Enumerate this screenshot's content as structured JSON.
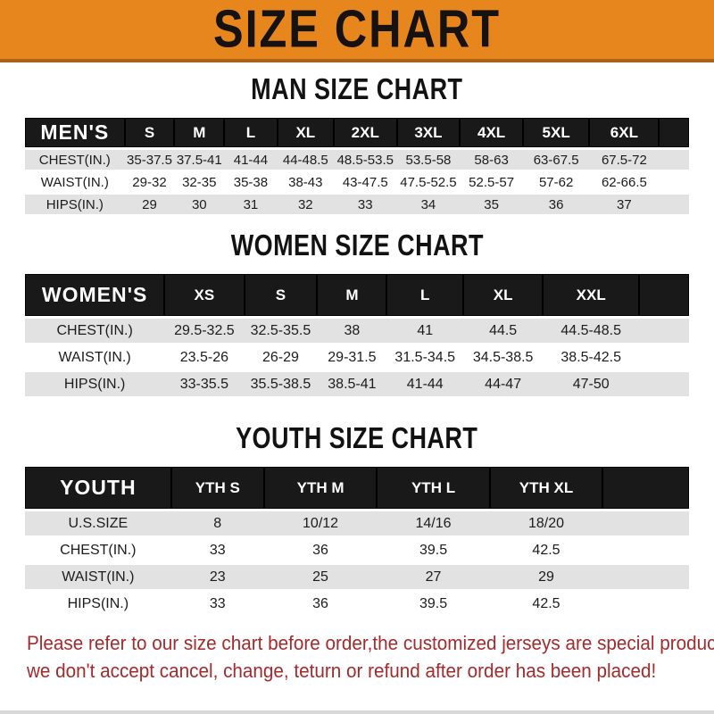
{
  "banner": {
    "title": "SIZE CHART"
  },
  "colors": {
    "banner_orange": "#E8861E",
    "banner_border": "#A96318",
    "header_band_black": "#191919",
    "row_gray": "#E2E2E2",
    "note_red": "#A62A2C"
  },
  "sections": [
    {
      "heading": "MAN SIZE CHART",
      "label": "MEN'S",
      "columns": [
        "S",
        "M",
        "L",
        "XL",
        "2XL",
        "3XL",
        "4XL",
        "5XL",
        "6XL"
      ],
      "rows": [
        {
          "label": "CHEST(IN.)",
          "values": [
            "35-37.5",
            "37.5-41",
            "41-44",
            "44-48.5",
            "48.5-53.5",
            "53.5-58",
            "58-63",
            "63-67.5",
            "67.5-72"
          ]
        },
        {
          "label": "WAIST(IN.)",
          "values": [
            "29-32",
            "32-35",
            "35-38",
            "38-43",
            "43-47.5",
            "47.5-52.5",
            "52.5-57",
            "57-62",
            "62-66.5"
          ]
        },
        {
          "label": "HIPS(IN.)",
          "values": [
            "29",
            "30",
            "31",
            "32",
            "33",
            "34",
            "35",
            "36",
            "37"
          ]
        }
      ]
    },
    {
      "heading": "WOMEN SIZE CHART",
      "label": "WOMEN'S",
      "columns": [
        "XS",
        "S",
        "M",
        "L",
        "XL",
        "XXL"
      ],
      "rows": [
        {
          "label": "CHEST(IN.)",
          "values": [
            "29.5-32.5",
            "32.5-35.5",
            "38",
            "41",
            "44.5",
            "44.5-48.5"
          ]
        },
        {
          "label": "WAIST(IN.)",
          "values": [
            "23.5-26",
            "26-29",
            "29-31.5",
            "31.5-34.5",
            "34.5-38.5",
            "38.5-42.5"
          ]
        },
        {
          "label": "HIPS(IN.)",
          "values": [
            "33-35.5",
            "35.5-38.5",
            "38.5-41",
            "41-44",
            "44-47",
            "47-50"
          ]
        }
      ]
    },
    {
      "heading": "YOUTH SIZE CHART",
      "label": "YOUTH",
      "columns": [
        "YTH S",
        "YTH M",
        "YTH L",
        "YTH XL"
      ],
      "rows": [
        {
          "label": "U.S.SIZE",
          "values": [
            "8",
            "10/12",
            "14/16",
            "18/20"
          ]
        },
        {
          "label": "CHEST(IN.)",
          "values": [
            "33",
            "36",
            "39.5",
            "42.5"
          ]
        },
        {
          "label": "WAIST(IN.)",
          "values": [
            "23",
            "25",
            "27",
            "29"
          ]
        },
        {
          "label": "HIPS(IN.)",
          "values": [
            "33",
            "36",
            "39.5",
            "42.5"
          ]
        }
      ]
    }
  ],
  "footer": {
    "line1": "Please refer to our size chart before order,the customized jerseys are special products,",
    "line2": "we don't accept cancel, change, teturn or refund after order has been placed!"
  }
}
